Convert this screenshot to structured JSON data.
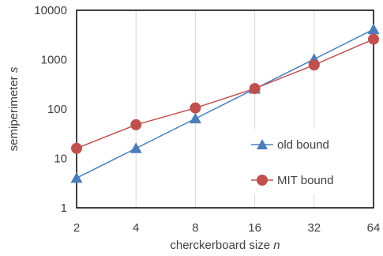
{
  "chart_data": {
    "type": "line",
    "title": "",
    "xlabel": "cherckerboard size ",
    "xlabel_var": "n",
    "ylabel": "semiperimeter ",
    "ylabel_var": "s",
    "x_scale": "log2",
    "y_scale": "log10",
    "x": [
      2,
      4,
      8,
      16,
      32,
      64
    ],
    "x_tick_labels": [
      "2",
      "4",
      "8",
      "16",
      "32",
      "64"
    ],
    "y_tick_values": [
      1,
      10,
      100,
      1000,
      10000
    ],
    "y_tick_labels": [
      "1",
      "10",
      "100",
      "1000",
      "10000"
    ],
    "ylim": [
      1,
      10000
    ],
    "grid": "vertical gridlines",
    "legend_position": "right",
    "series": [
      {
        "name": "old bound",
        "marker": "triangle",
        "color": "#4a7ebb",
        "values": [
          4,
          16,
          64,
          256,
          1024,
          4096
        ]
      },
      {
        "name": "MIT bound",
        "marker": "circle",
        "color": "#c0504d",
        "values": [
          16,
          48,
          105,
          260,
          780,
          2600
        ]
      }
    ]
  }
}
